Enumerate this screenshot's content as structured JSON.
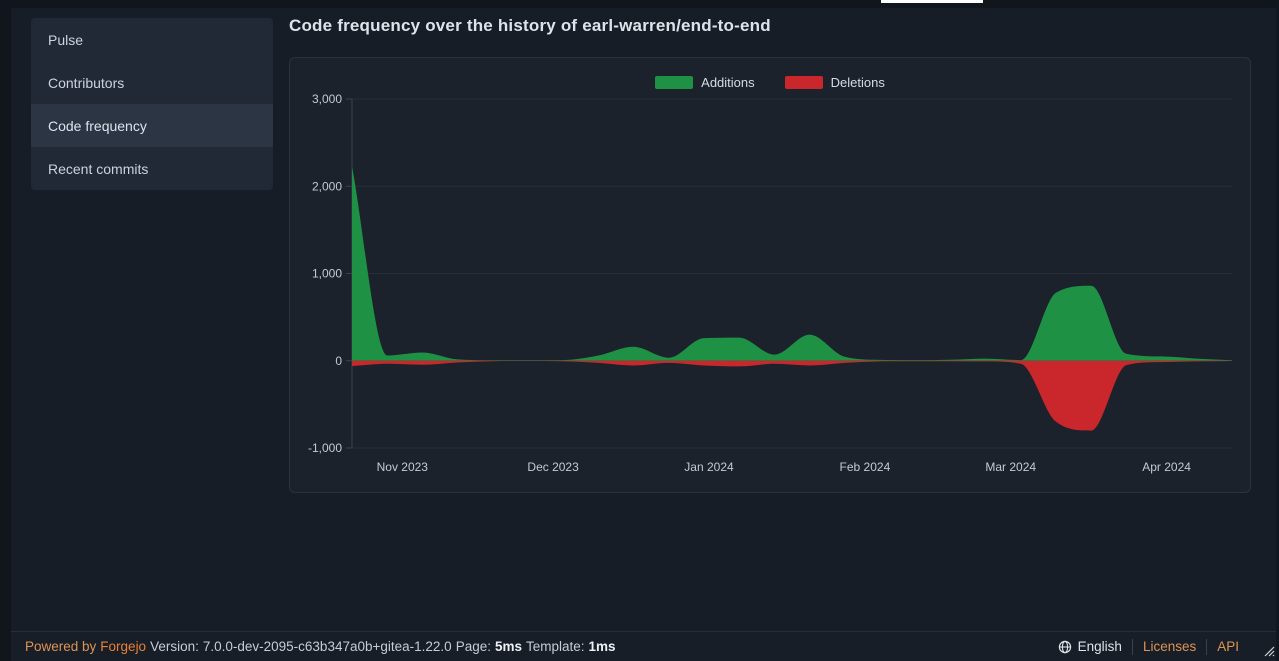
{
  "window": {
    "active_tab_indicator_color": "#ffffff"
  },
  "sidebar": {
    "items": [
      {
        "label": "Pulse",
        "active": false
      },
      {
        "label": "Contributors",
        "active": false
      },
      {
        "label": "Code frequency",
        "active": true
      },
      {
        "label": "Recent commits",
        "active": false
      }
    ]
  },
  "header": {
    "title": "Code frequency over the history of earl-warren/end-to-end"
  },
  "chart_data": {
    "type": "area",
    "title": "Code frequency over the history of earl-warren/end-to-end",
    "legend_position": "top-center",
    "grid": true,
    "x_range": [
      "2023-10-22",
      "2024-04-14"
    ],
    "ylim": [
      -1000,
      3000
    ],
    "y_ticks": [
      3000,
      2000,
      1000,
      0,
      -1000
    ],
    "y_tick_labels": [
      "3,000",
      "2,000",
      "1,000",
      "0",
      "-1,000"
    ],
    "x_tick_dates": [
      "2023-11-01",
      "2023-12-01",
      "2024-01-01",
      "2024-02-01",
      "2024-03-01",
      "2024-04-01"
    ],
    "x_tick_labels": [
      "Nov 2023",
      "Dec 2023",
      "Jan 2024",
      "Feb 2024",
      "Mar 2024",
      "Apr 2024"
    ],
    "x": [
      "2023-10-22",
      "2023-10-29",
      "2023-11-05",
      "2023-11-12",
      "2023-11-19",
      "2023-11-26",
      "2023-12-03",
      "2023-12-10",
      "2023-12-17",
      "2023-12-24",
      "2023-12-31",
      "2024-01-07",
      "2024-01-14",
      "2024-01-21",
      "2024-01-28",
      "2024-02-04",
      "2024-02-11",
      "2024-02-18",
      "2024-02-25",
      "2024-03-03",
      "2024-03-10",
      "2024-03-17",
      "2024-03-24",
      "2024-03-31",
      "2024-04-07",
      "2024-04-14"
    ],
    "series": [
      {
        "name": "Additions",
        "color": "#1e9145",
        "values": [
          2230,
          60,
          95,
          15,
          5,
          5,
          8,
          60,
          160,
          35,
          260,
          265,
          70,
          300,
          45,
          10,
          8,
          12,
          25,
          8,
          780,
          860,
          80,
          50,
          25,
          5
        ]
      },
      {
        "name": "Deletions",
        "color": "#c9272b",
        "values": [
          -60,
          -35,
          -45,
          -20,
          -5,
          -3,
          -5,
          -25,
          -55,
          -25,
          -55,
          -65,
          -35,
          -55,
          -25,
          -8,
          -5,
          -5,
          -8,
          -35,
          -700,
          -800,
          -50,
          -15,
          -8,
          -3
        ]
      }
    ]
  },
  "footer": {
    "powered_by": "Powered by",
    "forgejo": "Forgejo",
    "version_label": "Version:",
    "version": "7.0.0-dev-2095-c63b347a0b+gitea-1.22.0",
    "page_label": "Page:",
    "page_time": "5ms",
    "template_label": "Template:",
    "template_time": "1ms",
    "language": "English",
    "licenses": "Licenses",
    "api": "API"
  },
  "colors": {
    "accent_orange": "#ea8137",
    "additions_green": "#1e9145",
    "deletions_red": "#c9272b"
  }
}
